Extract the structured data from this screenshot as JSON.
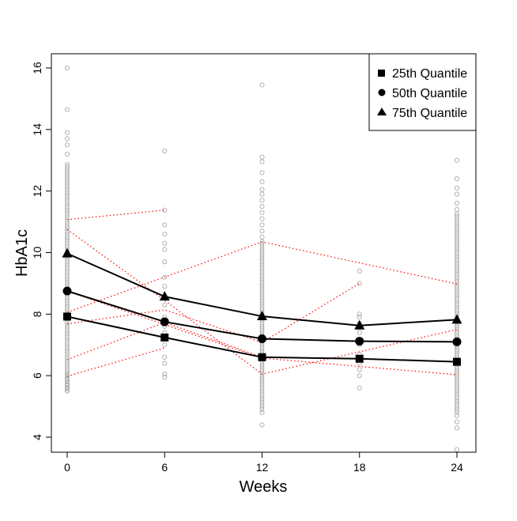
{
  "chart_data": {
    "type": "line",
    "xlabel": "Weeks",
    "ylabel": "HbA1c",
    "xlim": [
      -1,
      25.5
    ],
    "ylim": [
      3.5,
      16.5
    ],
    "x_ticks": [
      0,
      6,
      12,
      18,
      24
    ],
    "y_ticks": [
      4,
      6,
      8,
      10,
      12,
      14,
      16
    ],
    "grid": false,
    "legend_position": "top-right",
    "series": [
      {
        "name": "25th Quantile",
        "marker": "square",
        "x": [
          0,
          6,
          12,
          18,
          24
        ],
        "values": [
          7.92,
          7.24,
          6.6,
          6.55,
          6.45
        ]
      },
      {
        "name": "50th Quantile",
        "marker": "circle",
        "x": [
          0,
          6,
          12,
          18,
          24
        ],
        "values": [
          8.75,
          7.75,
          7.2,
          7.12,
          7.1
        ]
      },
      {
        "name": "75th Quantile",
        "marker": "triangle",
        "x": [
          0,
          6,
          12,
          18,
          24
        ],
        "values": [
          9.97,
          8.57,
          7.93,
          7.63,
          7.82
        ]
      }
    ],
    "individual_trajectories": [
      {
        "x": [
          0,
          6
        ],
        "values": [
          11.07,
          11.38
        ]
      },
      {
        "x": [
          0,
          6,
          12,
          24
        ],
        "values": [
          10.75,
          8.45,
          6.05,
          7.5
        ]
      },
      {
        "x": [
          0,
          12,
          24
        ],
        "values": [
          8.06,
          10.35,
          8.98
        ]
      },
      {
        "x": [
          0,
          6,
          12,
          18
        ],
        "values": [
          7.68,
          8.14,
          7.08,
          9.0
        ]
      },
      {
        "x": [
          0,
          12,
          24
        ],
        "values": [
          8.75,
          6.57,
          6.03
        ]
      },
      {
        "x": [
          0,
          6,
          12
        ],
        "values": [
          6.52,
          7.73,
          6.6
        ]
      },
      {
        "x": [
          0,
          6
        ],
        "values": [
          5.98,
          6.9
        ]
      }
    ],
    "observations": {
      "0": [
        5.5,
        5.6,
        5.7,
        5.8,
        5.9,
        6.0,
        6.1,
        14.65,
        16.0,
        13.9,
        13.7,
        13.5,
        13.2
      ],
      "6": [
        5.95,
        6.05,
        6.4,
        6.6,
        7.0,
        7.4,
        7.6,
        7.9,
        8.3,
        8.6,
        8.9,
        9.2,
        9.7,
        10.1,
        10.3,
        10.6,
        10.9,
        11.38,
        13.3
      ],
      "12": [
        4.4,
        4.8,
        15.45,
        13.1,
        12.95,
        12.6,
        12.3,
        12.05,
        11.9,
        11.7,
        11.5,
        11.3,
        11.1,
        10.9,
        10.7,
        10.5
      ],
      "18": [
        5.6,
        6.0,
        6.2,
        6.4,
        6.6,
        6.7,
        7.0,
        7.4,
        7.7,
        7.9,
        8.0,
        9.0,
        9.4
      ],
      "24": [
        3.6,
        4.3,
        4.5,
        4.7,
        13.0,
        12.4,
        12.1,
        11.9,
        11.6,
        11.4
      ]
    },
    "observation_ranges": {
      "0": [
        5.5,
        12.9
      ],
      "12": [
        4.9,
        10.4
      ],
      "24": [
        4.8,
        11.3
      ]
    }
  },
  "colors": {
    "quantile_line": "#000000",
    "trajectory": "#ff0000",
    "observation": "#aaaaaa"
  }
}
